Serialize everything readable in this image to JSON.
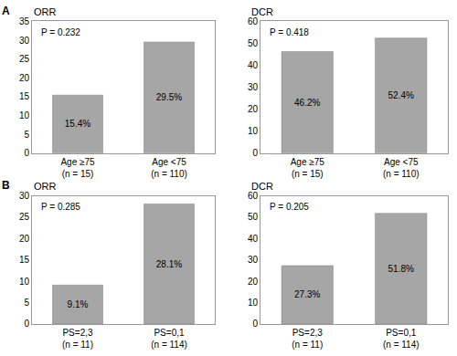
{
  "panel_labels": [
    "A",
    "B"
  ],
  "chart_data": [
    {
      "type": "bar",
      "title": "ORR",
      "annotation": "P = 0.232",
      "categories": [
        "Age ≥75\n(n = 15)",
        "Age <75\n(n = 110)"
      ],
      "values": [
        15.4,
        29.5
      ],
      "value_labels": [
        "15.4%",
        "29.5%"
      ],
      "data_labels": true,
      "color": "#a6a6a6",
      "ylim": [
        0,
        35
      ],
      "yticks": [
        0,
        5,
        10,
        15,
        20,
        25,
        30,
        35
      ],
      "grid": false
    },
    {
      "type": "bar",
      "title": "DCR",
      "annotation": "P = 0.418",
      "categories": [
        "Age ≥75\n(n = 15)",
        "Age <75\n(n = 110)"
      ],
      "values": [
        46.2,
        52.4
      ],
      "value_labels": [
        "46.2%",
        "52.4%"
      ],
      "data_labels": true,
      "color": "#a6a6a6",
      "ylim": [
        0,
        60
      ],
      "yticks": [
        0,
        10,
        20,
        30,
        40,
        50,
        60
      ],
      "grid": false
    },
    {
      "type": "bar",
      "title": "ORR",
      "annotation": "P = 0.285",
      "categories": [
        "PS=2,3\n(n = 11)",
        "PS=0,1\n(n = 114)"
      ],
      "values": [
        9.1,
        28.1
      ],
      "value_labels": [
        "9.1%",
        "28.1%"
      ],
      "data_labels": true,
      "color": "#a6a6a6",
      "ylim": [
        0,
        30
      ],
      "yticks": [
        0,
        5,
        10,
        15,
        20,
        25,
        30
      ],
      "grid": false
    },
    {
      "type": "bar",
      "title": "DCR",
      "annotation": "P = 0.205",
      "categories": [
        "PS=2,3\n(n = 11)",
        "PS=0,1\n(n = 114)"
      ],
      "values": [
        27.3,
        51.8
      ],
      "value_labels": [
        "27.3%",
        "51.8%"
      ],
      "data_labels": true,
      "color": "#a6a6a6",
      "ylim": [
        0,
        60
      ],
      "yticks": [
        0,
        10,
        20,
        30,
        40,
        50,
        60
      ],
      "grid": false
    }
  ]
}
